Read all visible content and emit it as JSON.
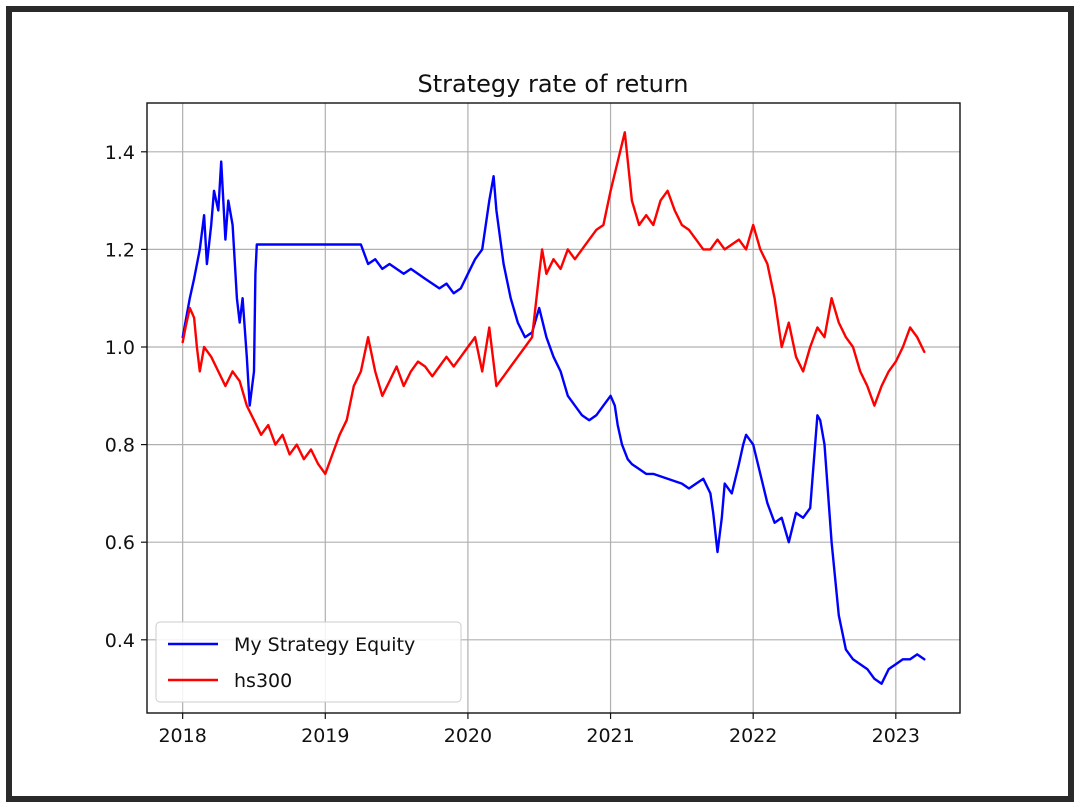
{
  "chart_data": {
    "type": "line",
    "title": "Strategy rate of return",
    "xlabel": "",
    "ylabel": "",
    "xlim": [
      2017.75,
      2023.45
    ],
    "ylim": [
      0.25,
      1.5
    ],
    "x_ticks": [
      2018,
      2019,
      2020,
      2021,
      2022,
      2023
    ],
    "x_tick_labels": [
      "2018",
      "2019",
      "2020",
      "2021",
      "2022",
      "2023"
    ],
    "y_ticks": [
      0.4,
      0.6,
      0.8,
      1.0,
      1.2,
      1.4
    ],
    "y_tick_labels": [
      "0.4",
      "0.6",
      "0.8",
      "1.0",
      "1.2",
      "1.4"
    ],
    "grid": true,
    "legend": {
      "position": "lower-left",
      "entries": [
        "My Strategy Equity",
        "hs300"
      ]
    },
    "series": [
      {
        "name": "My Strategy Equity",
        "color": "#0000ff",
        "x": [
          2018.0,
          2018.05,
          2018.08,
          2018.12,
          2018.15,
          2018.17,
          2018.2,
          2018.22,
          2018.25,
          2018.27,
          2018.3,
          2018.32,
          2018.35,
          2018.38,
          2018.4,
          2018.42,
          2018.45,
          2018.47,
          2018.5,
          2018.51,
          2018.52,
          2019.25,
          2019.3,
          2019.35,
          2019.4,
          2019.45,
          2019.5,
          2019.55,
          2019.6,
          2019.7,
          2019.8,
          2019.85,
          2019.9,
          2019.95,
          2020.0,
          2020.05,
          2020.1,
          2020.15,
          2020.18,
          2020.2,
          2020.25,
          2020.3,
          2020.35,
          2020.4,
          2020.45,
          2020.5,
          2020.55,
          2020.6,
          2020.65,
          2020.7,
          2020.75,
          2020.8,
          2020.85,
          2020.9,
          2020.95,
          2021.0,
          2021.03,
          2021.05,
          2021.08,
          2021.12,
          2021.15,
          2021.2,
          2021.25,
          2021.3,
          2021.4,
          2021.5,
          2021.55,
          2021.6,
          2021.65,
          2021.7,
          2021.72,
          2021.75,
          2021.78,
          2021.8,
          2021.85,
          2021.9,
          2021.93,
          2021.95,
          2022.0,
          2022.05,
          2022.1,
          2022.15,
          2022.2,
          2022.25,
          2022.3,
          2022.35,
          2022.4,
          2022.45,
          2022.47,
          2022.5,
          2022.55,
          2022.6,
          2022.65,
          2022.7,
          2022.75,
          2022.8,
          2022.85,
          2022.9,
          2022.95,
          2023.0,
          2023.05,
          2023.1,
          2023.15,
          2023.2
        ],
        "values": [
          1.02,
          1.1,
          1.14,
          1.2,
          1.27,
          1.17,
          1.25,
          1.32,
          1.28,
          1.38,
          1.22,
          1.3,
          1.25,
          1.1,
          1.05,
          1.1,
          0.98,
          0.88,
          0.95,
          1.15,
          1.21,
          1.21,
          1.17,
          1.18,
          1.16,
          1.17,
          1.16,
          1.15,
          1.16,
          1.14,
          1.12,
          1.13,
          1.11,
          1.12,
          1.15,
          1.18,
          1.2,
          1.3,
          1.35,
          1.28,
          1.17,
          1.1,
          1.05,
          1.02,
          1.03,
          1.08,
          1.02,
          0.98,
          0.95,
          0.9,
          0.88,
          0.86,
          0.85,
          0.86,
          0.88,
          0.9,
          0.88,
          0.84,
          0.8,
          0.77,
          0.76,
          0.75,
          0.74,
          0.74,
          0.73,
          0.72,
          0.71,
          0.72,
          0.73,
          0.7,
          0.66,
          0.58,
          0.65,
          0.72,
          0.7,
          0.76,
          0.8,
          0.82,
          0.8,
          0.74,
          0.68,
          0.64,
          0.65,
          0.6,
          0.66,
          0.65,
          0.67,
          0.86,
          0.85,
          0.8,
          0.6,
          0.45,
          0.38,
          0.36,
          0.35,
          0.34,
          0.32,
          0.31,
          0.34,
          0.35,
          0.36,
          0.36,
          0.37,
          0.36
        ]
      },
      {
        "name": "hs300",
        "color": "#ff0000",
        "x": [
          2018.0,
          2018.02,
          2018.05,
          2018.08,
          2018.1,
          2018.12,
          2018.15,
          2018.2,
          2018.25,
          2018.3,
          2018.35,
          2018.4,
          2018.45,
          2018.5,
          2018.55,
          2018.6,
          2018.65,
          2018.7,
          2018.75,
          2018.8,
          2018.85,
          2018.9,
          2018.95,
          2019.0,
          2019.05,
          2019.1,
          2019.15,
          2019.2,
          2019.25,
          2019.3,
          2019.35,
          2019.4,
          2019.45,
          2019.5,
          2019.55,
          2019.6,
          2019.65,
          2019.7,
          2019.75,
          2019.8,
          2019.85,
          2019.9,
          2019.95,
          2020.0,
          2020.05,
          2020.1,
          2020.15,
          2020.2,
          2020.25,
          2020.3,
          2020.35,
          2020.4,
          2020.45,
          2020.5,
          2020.52,
          2020.55,
          2020.6,
          2020.65,
          2020.7,
          2020.75,
          2020.8,
          2020.85,
          2020.9,
          2020.95,
          2021.0,
          2021.05,
          2021.1,
          2021.15,
          2021.2,
          2021.25,
          2021.3,
          2021.35,
          2021.4,
          2021.45,
          2021.5,
          2021.55,
          2021.6,
          2021.65,
          2021.7,
          2021.75,
          2021.8,
          2021.85,
          2021.9,
          2021.95,
          2022.0,
          2022.05,
          2022.1,
          2022.15,
          2022.2,
          2022.25,
          2022.3,
          2022.35,
          2022.4,
          2022.45,
          2022.5,
          2022.55,
          2022.6,
          2022.65,
          2022.7,
          2022.75,
          2022.8,
          2022.85,
          2022.9,
          2022.95,
          2023.0,
          2023.05,
          2023.1,
          2023.15,
          2023.2
        ],
        "values": [
          1.01,
          1.04,
          1.08,
          1.06,
          1.0,
          0.95,
          1.0,
          0.98,
          0.95,
          0.92,
          0.95,
          0.93,
          0.88,
          0.85,
          0.82,
          0.84,
          0.8,
          0.82,
          0.78,
          0.8,
          0.77,
          0.79,
          0.76,
          0.74,
          0.78,
          0.82,
          0.85,
          0.92,
          0.95,
          1.02,
          0.95,
          0.9,
          0.93,
          0.96,
          0.92,
          0.95,
          0.97,
          0.96,
          0.94,
          0.96,
          0.98,
          0.96,
          0.98,
          1.0,
          1.02,
          0.95,
          1.04,
          0.92,
          0.94,
          0.96,
          0.98,
          1.0,
          1.02,
          1.15,
          1.2,
          1.15,
          1.18,
          1.16,
          1.2,
          1.18,
          1.2,
          1.22,
          1.24,
          1.25,
          1.32,
          1.38,
          1.44,
          1.3,
          1.25,
          1.27,
          1.25,
          1.3,
          1.32,
          1.28,
          1.25,
          1.24,
          1.22,
          1.2,
          1.2,
          1.22,
          1.2,
          1.21,
          1.22,
          1.2,
          1.25,
          1.2,
          1.17,
          1.1,
          1.0,
          1.05,
          0.98,
          0.95,
          1.0,
          1.04,
          1.02,
          1.1,
          1.05,
          1.02,
          1.0,
          0.95,
          0.92,
          0.88,
          0.92,
          0.95,
          0.97,
          1.0,
          1.04,
          1.02,
          0.99
        ]
      }
    ]
  }
}
